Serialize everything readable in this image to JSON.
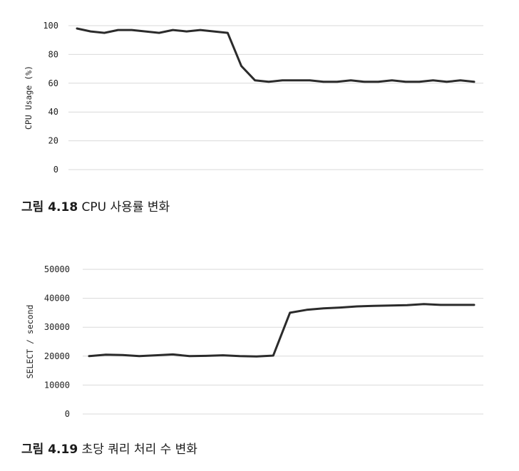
{
  "figures": [
    {
      "caption_label": "그림 4.18",
      "caption_text": " CPU 사용률 변화"
    },
    {
      "caption_label": "그림 4.19",
      "caption_text": " 초당 쿼리 처리 수 변화"
    }
  ],
  "chart_data": [
    {
      "type": "line",
      "title": "",
      "xlabel": "",
      "ylabel": "CPU Usage (%)",
      "ylim": [
        0,
        100
      ],
      "yticks": [
        0,
        20,
        40,
        60,
        80,
        100
      ],
      "grid": true,
      "x": [
        1,
        2,
        3,
        4,
        5,
        6,
        7,
        8,
        9,
        10,
        11,
        12,
        13,
        14,
        15,
        16,
        17,
        18,
        19,
        20,
        21,
        22,
        23,
        24,
        25,
        26,
        27,
        28,
        29,
        30
      ],
      "series": [
        {
          "values": [
            98,
            96,
            95,
            97,
            97,
            96,
            95,
            97,
            96,
            97,
            96,
            95,
            72,
            62,
            61,
            62,
            62,
            62,
            61,
            61,
            62,
            61,
            61,
            62,
            61,
            61,
            62,
            61,
            62,
            61
          ]
        }
      ],
      "line_color": "#2b2b2b"
    },
    {
      "type": "line",
      "title": "",
      "xlabel": "",
      "ylabel": "SELECT / second",
      "ylim": [
        0,
        50000
      ],
      "yticks": [
        0,
        10000,
        20000,
        30000,
        40000,
        50000
      ],
      "grid": true,
      "x": [
        1,
        2,
        3,
        4,
        5,
        6,
        7,
        8,
        9,
        10,
        11,
        12,
        13,
        14,
        15,
        16,
        17,
        18,
        19,
        20,
        21,
        22,
        23,
        24
      ],
      "series": [
        {
          "values": [
            20000,
            20500,
            20400,
            20000,
            20300,
            20600,
            20000,
            20100,
            20300,
            20000,
            19900,
            20200,
            35000,
            36000,
            36500,
            36800,
            37200,
            37400,
            37500,
            37600,
            38000,
            37700,
            37700,
            37700
          ]
        }
      ],
      "line_color": "#2b2b2b"
    }
  ]
}
